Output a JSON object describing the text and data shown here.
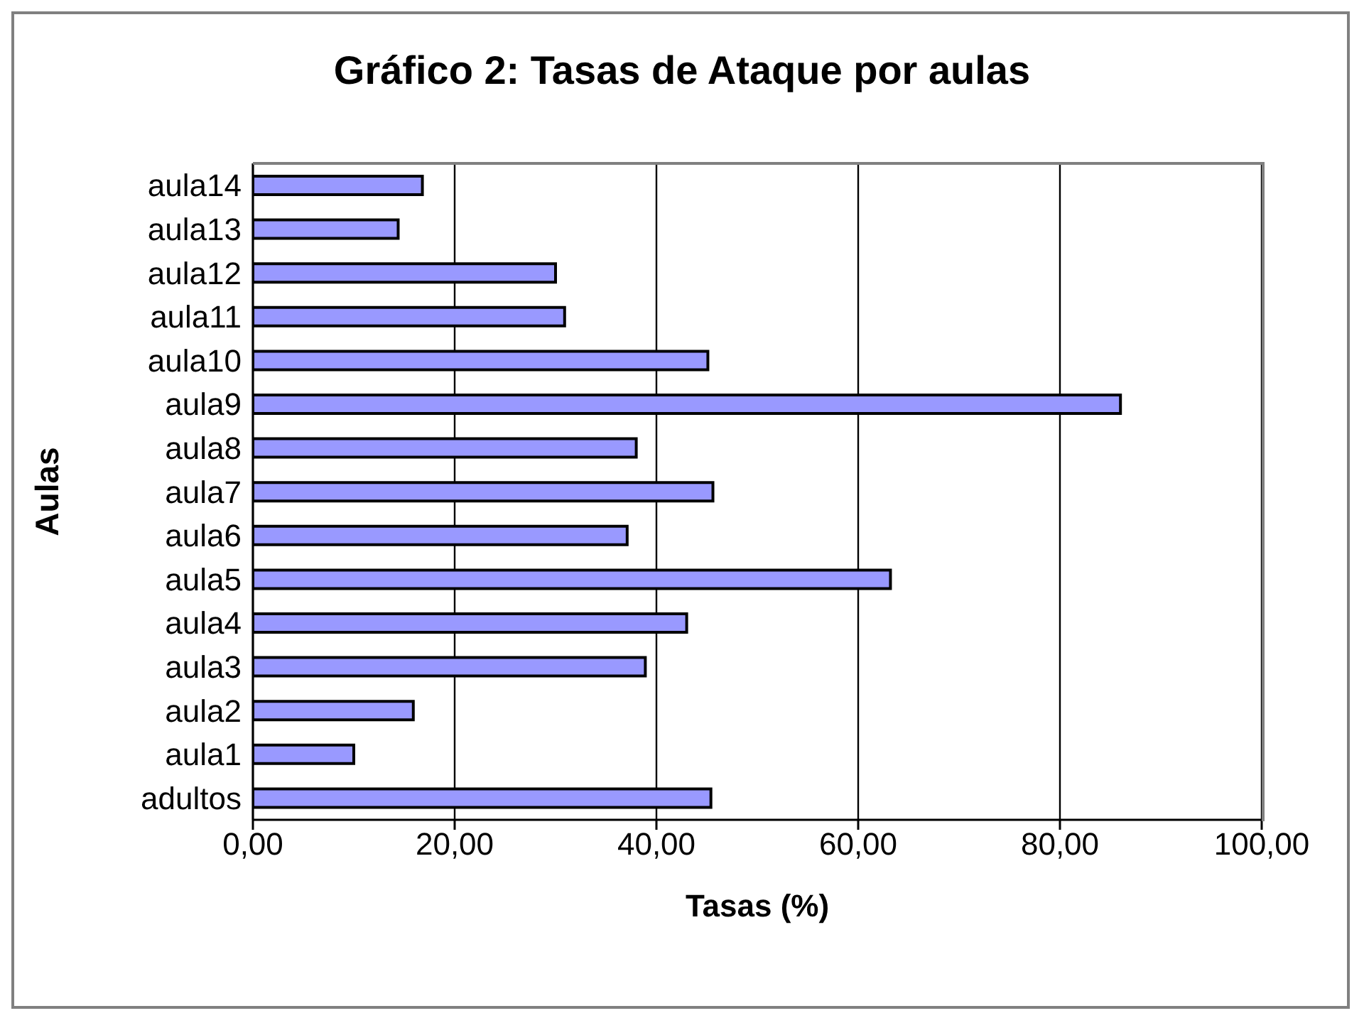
{
  "chart_data": {
    "type": "bar",
    "orientation": "horizontal",
    "title": "Gráfico 2: Tasas de Ataque por aulas",
    "xlabel": "Tasas (%)",
    "ylabel": "Aulas",
    "categories": [
      "aula14",
      "aula13",
      "aula12",
      "aula11",
      "aula10",
      "aula9",
      "aula8",
      "aula7",
      "aula6",
      "aula5",
      "aula4",
      "aula3",
      "aula2",
      "aula1",
      "adultos"
    ],
    "values": [
      16.8,
      14.4,
      30.0,
      30.9,
      45.1,
      86.0,
      38.0,
      45.6,
      37.1,
      63.2,
      43.0,
      38.9,
      15.9,
      10.0,
      45.4
    ],
    "color": "#9999ff",
    "xlim": [
      0,
      100
    ],
    "xticks": [
      {
        "value": 0,
        "label": "0,00"
      },
      {
        "value": 20,
        "label": "20,00"
      },
      {
        "value": 40,
        "label": "40,00"
      },
      {
        "value": 60,
        "label": "60,00"
      },
      {
        "value": 80,
        "label": "80,00"
      },
      {
        "value": 100,
        "label": "100,00"
      }
    ],
    "grid": "x"
  }
}
